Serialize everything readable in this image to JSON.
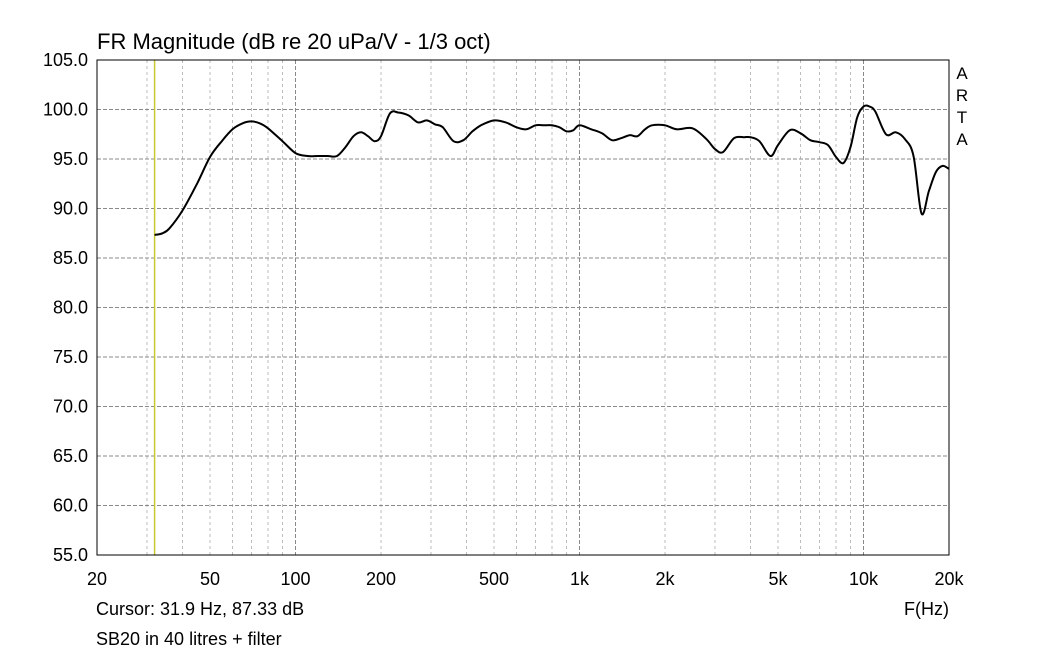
{
  "chart_data": {
    "type": "line",
    "title": "FR Magnitude (dB re 20 uPa/V - 1/3 oct)",
    "xlabel": "F(Hz)",
    "ylabel": "",
    "x_scale": "log",
    "xlim": [
      20,
      20000
    ],
    "ylim": [
      55.0,
      105.0
    ],
    "grid": true,
    "y_ticks": [
      "55.0",
      "60.0",
      "65.0",
      "70.0",
      "75.0",
      "80.0",
      "85.0",
      "90.0",
      "95.0",
      "100.0",
      "105.0"
    ],
    "x_tick_labels": [
      {
        "value": 20,
        "label": "20"
      },
      {
        "value": 50,
        "label": "50"
      },
      {
        "value": 100,
        "label": "100"
      },
      {
        "value": 200,
        "label": "200"
      },
      {
        "value": 500,
        "label": "500"
      },
      {
        "value": 1000,
        "label": "1k"
      },
      {
        "value": 2000,
        "label": "2k"
      },
      {
        "value": 5000,
        "label": "5k"
      },
      {
        "value": 10000,
        "label": "10k"
      },
      {
        "value": 20000,
        "label": "20k"
      }
    ],
    "cursor": {
      "x": 31.9,
      "color": "#c8c832"
    },
    "series_color": "#000000",
    "series": [
      {
        "x": [
          31.9,
          34,
          36,
          40,
          45,
          50,
          55,
          60,
          65,
          70,
          75,
          80,
          90,
          100,
          110,
          120,
          130,
          140,
          150,
          160,
          170,
          180,
          190,
          200,
          215,
          230,
          250,
          270,
          290,
          310,
          330,
          360,
          390,
          420,
          450,
          500,
          550,
          600,
          650,
          700,
          750,
          800,
          850,
          900,
          950,
          1000,
          1100,
          1200,
          1300,
          1400,
          1500,
          1600,
          1700,
          1800,
          2000,
          2200,
          2500,
          2800,
          3000,
          3200,
          3500,
          3800,
          4000,
          4300,
          4700,
          5000,
          5500,
          6000,
          6500,
          7000,
          7500,
          8000,
          8500,
          9000,
          9500,
          10000,
          10500,
          11000,
          12000,
          13000,
          14000,
          15000,
          16000,
          17000,
          18000,
          19000,
          20000
        ],
        "y": [
          87.33,
          87.5,
          88.0,
          89.8,
          92.5,
          95.2,
          96.8,
          98.0,
          98.6,
          98.8,
          98.6,
          98.1,
          96.8,
          95.6,
          95.3,
          95.3,
          95.3,
          95.3,
          96.2,
          97.3,
          97.7,
          97.3,
          96.8,
          97.3,
          99.6,
          99.7,
          99.4,
          98.7,
          98.9,
          98.5,
          98.2,
          96.8,
          96.9,
          97.8,
          98.4,
          98.9,
          98.7,
          98.2,
          98.0,
          98.4,
          98.4,
          98.4,
          98.2,
          97.8,
          97.9,
          98.4,
          98.0,
          97.6,
          96.9,
          97.1,
          97.4,
          97.3,
          98.0,
          98.4,
          98.4,
          98.0,
          98.1,
          97.0,
          96.0,
          95.7,
          97.1,
          97.2,
          97.2,
          96.8,
          95.3,
          96.4,
          97.9,
          97.6,
          96.9,
          96.7,
          96.4,
          95.2,
          94.6,
          96.2,
          99.2,
          100.3,
          100.3,
          99.8,
          97.5,
          97.7,
          97.0,
          95.3,
          89.5,
          91.8,
          93.7,
          94.3,
          94.0
        ]
      }
    ]
  },
  "brand": {
    "letters": [
      "A",
      "R",
      "T",
      "A"
    ]
  },
  "footer": {
    "cursor_text": "Cursor: 31.9 Hz, 87.33 dB",
    "caption": "SB20 in 40 litres + filter"
  }
}
